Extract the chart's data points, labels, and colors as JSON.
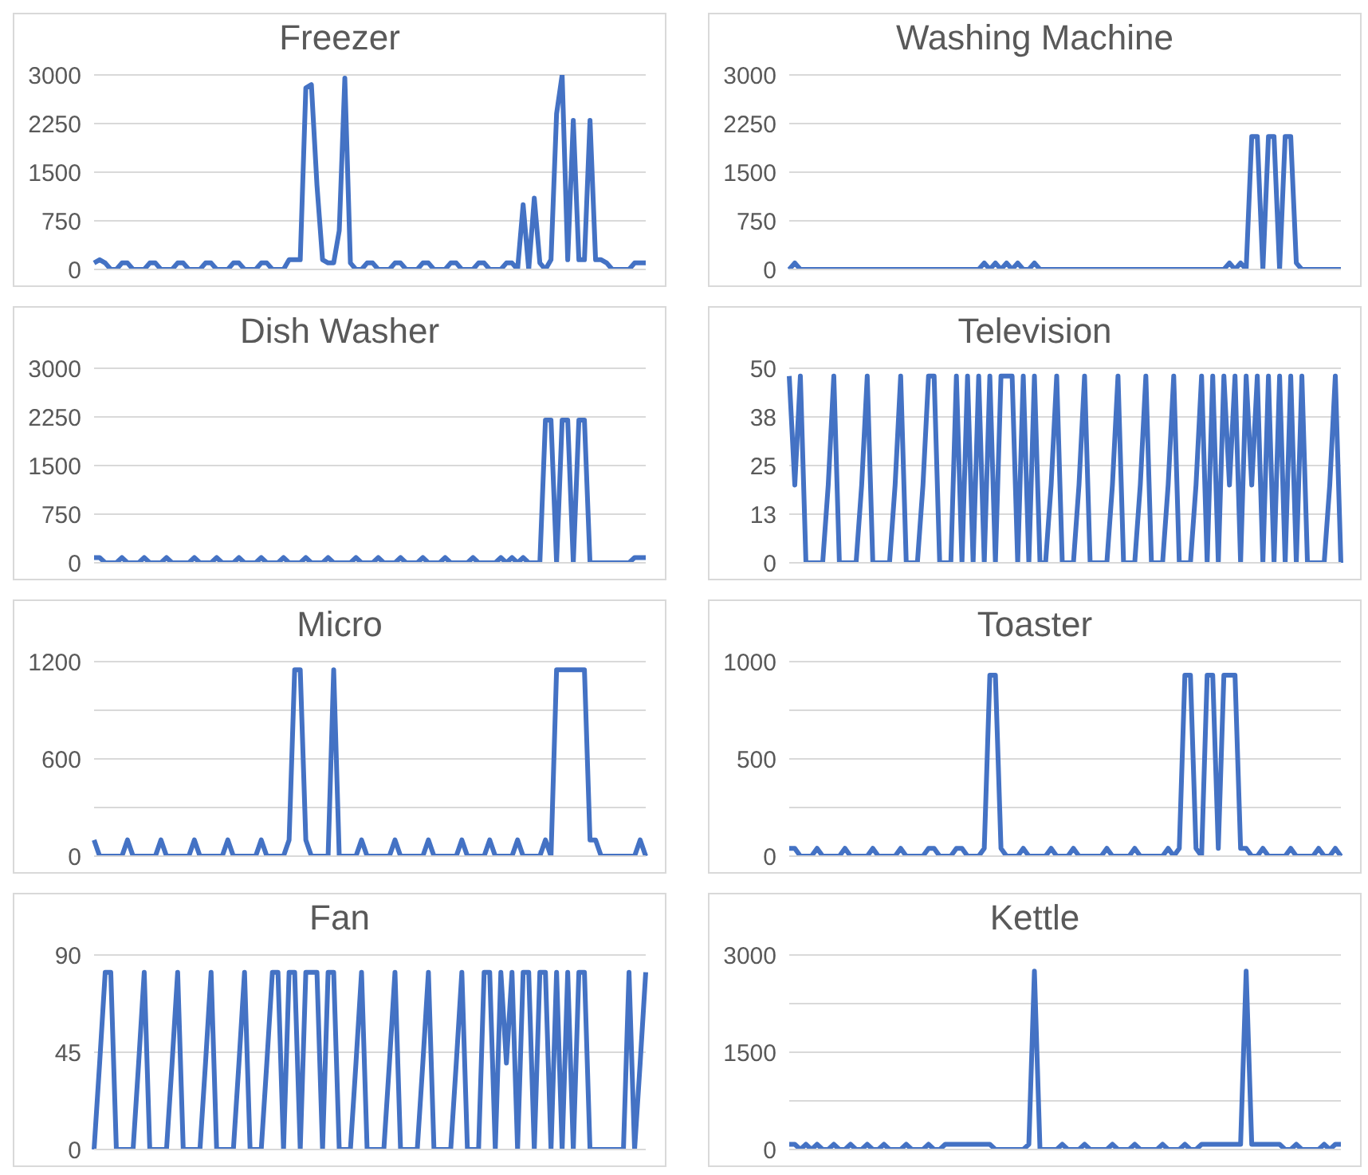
{
  "chart_data": [
    {
      "type": "line",
      "title": "Freezer",
      "tick_labels": "y",
      "grid": "y",
      "color": "#4472c4",
      "ylim": [
        0,
        3000
      ],
      "yticks": [
        0,
        750,
        1500,
        2250,
        3000
      ],
      "categories": [
        null,
        null,
        null,
        null,
        null,
        null,
        null,
        null,
        null,
        null,
        null,
        null,
        null,
        null,
        null,
        null,
        null,
        null,
        null,
        null,
        null,
        null,
        null,
        null,
        null,
        null,
        null,
        null,
        null,
        null,
        null,
        null,
        null,
        null,
        null,
        null,
        null,
        null,
        null,
        null,
        null,
        null,
        null,
        null,
        null,
        null,
        null,
        null,
        null,
        null,
        null,
        null,
        null,
        null,
        null,
        null,
        null,
        null,
        null,
        null,
        null,
        null,
        null,
        null,
        null,
        null,
        null,
        null,
        null,
        null,
        null,
        null,
        null,
        null,
        null,
        null,
        null,
        null,
        null,
        null,
        null,
        null,
        null,
        null,
        null,
        null,
        null,
        null,
        null,
        null,
        null,
        null,
        null,
        null,
        null,
        null,
        null,
        null,
        null,
        null
      ],
      "values": [
        100,
        150,
        100,
        0,
        0,
        100,
        100,
        0,
        0,
        0,
        100,
        100,
        0,
        0,
        0,
        100,
        100,
        0,
        0,
        0,
        100,
        100,
        0,
        0,
        0,
        100,
        100,
        0,
        0,
        0,
        100,
        100,
        0,
        0,
        0,
        150,
        150,
        150,
        2800,
        2850,
        1300,
        150,
        100,
        100,
        600,
        2950,
        100,
        0,
        0,
        100,
        100,
        0,
        0,
        0,
        100,
        100,
        0,
        0,
        0,
        100,
        100,
        0,
        0,
        0,
        100,
        100,
        0,
        0,
        0,
        100,
        100,
        0,
        0,
        0,
        100,
        100,
        0,
        1000,
        0,
        1100,
        100,
        0,
        150,
        2400,
        3000,
        150,
        2300,
        150,
        150,
        2300,
        150,
        150,
        100,
        0,
        0,
        0,
        0,
        100,
        100,
        100
      ]
    },
    {
      "type": "line",
      "title": "Washing Machine",
      "tick_labels": "y",
      "grid": "y",
      "color": "#4472c4",
      "ylim": [
        0,
        3000
      ],
      "yticks": [
        0,
        750,
        1500,
        2250,
        3000
      ],
      "categories": [
        null,
        null,
        null,
        null,
        null,
        null,
        null,
        null,
        null,
        null,
        null,
        null,
        null,
        null,
        null,
        null,
        null,
        null,
        null,
        null,
        null,
        null,
        null,
        null,
        null,
        null,
        null,
        null,
        null,
        null,
        null,
        null,
        null,
        null,
        null,
        null,
        null,
        null,
        null,
        null,
        null,
        null,
        null,
        null,
        null,
        null,
        null,
        null,
        null,
        null,
        null,
        null,
        null,
        null,
        null,
        null,
        null,
        null,
        null,
        null,
        null,
        null,
        null,
        null,
        null,
        null,
        null,
        null,
        null,
        null,
        null,
        null,
        null,
        null,
        null,
        null,
        null,
        null,
        null,
        null,
        null,
        null,
        null,
        null,
        null,
        null,
        null,
        null,
        null,
        null,
        null,
        null,
        null,
        null,
        null,
        null,
        null,
        null,
        null,
        null
      ],
      "values": [
        0,
        100,
        0,
        0,
        0,
        0,
        0,
        0,
        0,
        0,
        0,
        0,
        0,
        0,
        0,
        0,
        0,
        0,
        0,
        0,
        0,
        0,
        0,
        0,
        0,
        0,
        0,
        0,
        0,
        0,
        0,
        0,
        0,
        0,
        0,
        100,
        0,
        100,
        0,
        100,
        0,
        100,
        0,
        0,
        100,
        0,
        0,
        0,
        0,
        0,
        0,
        0,
        0,
        0,
        0,
        0,
        0,
        0,
        0,
        0,
        0,
        0,
        0,
        0,
        0,
        0,
        0,
        0,
        0,
        0,
        0,
        0,
        0,
        0,
        0,
        0,
        0,
        0,
        0,
        100,
        0,
        100,
        0,
        2050,
        2050,
        0,
        2050,
        2050,
        0,
        2050,
        2050,
        100,
        0,
        0,
        0,
        0,
        0,
        0,
        0,
        0
      ]
    },
    {
      "type": "line",
      "title": "Dish Washer",
      "tick_labels": "y",
      "grid": "y",
      "color": "#4472c4",
      "ylim": [
        0,
        3000
      ],
      "yticks": [
        0,
        750,
        1500,
        2250,
        3000
      ],
      "categories": [
        null,
        null,
        null,
        null,
        null,
        null,
        null,
        null,
        null,
        null,
        null,
        null,
        null,
        null,
        null,
        null,
        null,
        null,
        null,
        null,
        null,
        null,
        null,
        null,
        null,
        null,
        null,
        null,
        null,
        null,
        null,
        null,
        null,
        null,
        null,
        null,
        null,
        null,
        null,
        null,
        null,
        null,
        null,
        null,
        null,
        null,
        null,
        null,
        null,
        null,
        null,
        null,
        null,
        null,
        null,
        null,
        null,
        null,
        null,
        null,
        null,
        null,
        null,
        null,
        null,
        null,
        null,
        null,
        null,
        null,
        null,
        null,
        null,
        null,
        null,
        null,
        null,
        null,
        null,
        null,
        null,
        null,
        null,
        null,
        null,
        null,
        null,
        null,
        null,
        null,
        null,
        null,
        null,
        null,
        null,
        null,
        null,
        null,
        null,
        null
      ],
      "values": [
        80,
        80,
        0,
        0,
        0,
        80,
        0,
        0,
        0,
        80,
        0,
        0,
        0,
        80,
        0,
        0,
        0,
        0,
        80,
        0,
        0,
        0,
        80,
        0,
        0,
        0,
        80,
        0,
        0,
        0,
        80,
        0,
        0,
        0,
        80,
        0,
        0,
        0,
        80,
        0,
        0,
        0,
        80,
        0,
        0,
        0,
        0,
        80,
        0,
        0,
        0,
        80,
        0,
        0,
        0,
        80,
        0,
        0,
        0,
        80,
        0,
        0,
        0,
        80,
        0,
        0,
        0,
        0,
        80,
        0,
        0,
        0,
        0,
        80,
        0,
        80,
        0,
        80,
        0,
        0,
        0,
        2200,
        2200,
        0,
        2200,
        2200,
        0,
        2200,
        2200,
        0,
        0,
        0,
        0,
        0,
        0,
        0,
        0,
        80,
        80,
        80
      ]
    },
    {
      "type": "line",
      "title": "Television",
      "tick_labels": "y",
      "grid": "y",
      "color": "#4472c4",
      "ylim": [
        0,
        50
      ],
      "yticks": [
        0,
        {
          "value": 12.5,
          "label": "13"
        },
        25,
        {
          "value": 37.5,
          "label": "38"
        },
        50
      ],
      "categories": [
        null,
        null,
        null,
        null,
        null,
        null,
        null,
        null,
        null,
        null,
        null,
        null,
        null,
        null,
        null,
        null,
        null,
        null,
        null,
        null,
        null,
        null,
        null,
        null,
        null,
        null,
        null,
        null,
        null,
        null,
        null,
        null,
        null,
        null,
        null,
        null,
        null,
        null,
        null,
        null,
        null,
        null,
        null,
        null,
        null,
        null,
        null,
        null,
        null,
        null,
        null,
        null,
        null,
        null,
        null,
        null,
        null,
        null,
        null,
        null,
        null,
        null,
        null,
        null,
        null,
        null,
        null,
        null,
        null,
        null,
        null,
        null,
        null,
        null,
        null,
        null,
        null,
        null,
        null,
        null,
        null,
        null,
        null,
        null,
        null,
        null,
        null,
        null,
        null,
        null,
        null,
        null,
        null,
        null,
        null,
        null,
        null,
        null,
        null,
        null
      ],
      "values": [
        48,
        20,
        48,
        0,
        0,
        0,
        0,
        20,
        48,
        0,
        0,
        0,
        0,
        20,
        48,
        0,
        0,
        0,
        0,
        20,
        48,
        0,
        0,
        0,
        20,
        48,
        48,
        0,
        0,
        0,
        48,
        0,
        48,
        0,
        48,
        0,
        48,
        0,
        48,
        48,
        48,
        0,
        48,
        0,
        48,
        0,
        0,
        20,
        48,
        0,
        0,
        0,
        20,
        48,
        0,
        0,
        0,
        0,
        20,
        48,
        0,
        0,
        0,
        20,
        48,
        0,
        0,
        0,
        20,
        48,
        0,
        0,
        0,
        20,
        48,
        0,
        48,
        0,
        48,
        20,
        48,
        0,
        48,
        20,
        48,
        0,
        48,
        0,
        48,
        0,
        48,
        0,
        48,
        0,
        0,
        0,
        0,
        20,
        48,
        0
      ]
    },
    {
      "type": "line",
      "title": "Micro",
      "tick_labels": "y",
      "grid": "y",
      "color": "#4472c4",
      "ylim": [
        0,
        1200
      ],
      "yticks": [
        0,
        {
          "value": 300,
          "label": null
        },
        600,
        {
          "value": 900,
          "label": null
        },
        1200
      ],
      "categories": [
        null,
        null,
        null,
        null,
        null,
        null,
        null,
        null,
        null,
        null,
        null,
        null,
        null,
        null,
        null,
        null,
        null,
        null,
        null,
        null,
        null,
        null,
        null,
        null,
        null,
        null,
        null,
        null,
        null,
        null,
        null,
        null,
        null,
        null,
        null,
        null,
        null,
        null,
        null,
        null,
        null,
        null,
        null,
        null,
        null,
        null,
        null,
        null,
        null,
        null,
        null,
        null,
        null,
        null,
        null,
        null,
        null,
        null,
        null,
        null,
        null,
        null,
        null,
        null,
        null,
        null,
        null,
        null,
        null,
        null,
        null,
        null,
        null,
        null,
        null,
        null,
        null,
        null,
        null,
        null,
        null,
        null,
        null,
        null,
        null,
        null,
        null,
        null,
        null,
        null,
        null,
        null,
        null,
        null,
        null,
        null,
        null,
        null,
        null,
        null
      ],
      "values": [
        100,
        0,
        0,
        0,
        0,
        0,
        100,
        0,
        0,
        0,
        0,
        0,
        100,
        0,
        0,
        0,
        0,
        0,
        100,
        0,
        0,
        0,
        0,
        0,
        100,
        0,
        0,
        0,
        0,
        0,
        100,
        0,
        0,
        0,
        0,
        100,
        1150,
        1150,
        100,
        0,
        0,
        0,
        0,
        1150,
        0,
        0,
        0,
        0,
        100,
        0,
        0,
        0,
        0,
        0,
        100,
        0,
        0,
        0,
        0,
        0,
        100,
        0,
        0,
        0,
        0,
        0,
        100,
        0,
        0,
        0,
        0,
        100,
        0,
        0,
        0,
        0,
        100,
        0,
        0,
        0,
        0,
        100,
        0,
        1150,
        1150,
        1150,
        1150,
        1150,
        1150,
        100,
        100,
        0,
        0,
        0,
        0,
        0,
        0,
        0,
        100,
        0
      ]
    },
    {
      "type": "line",
      "title": "Toaster",
      "tick_labels": "y",
      "grid": "y",
      "color": "#4472c4",
      "ylim": [
        0,
        1000
      ],
      "yticks": [
        0,
        {
          "value": 250,
          "label": null
        },
        500,
        {
          "value": 750,
          "label": null
        },
        1000
      ],
      "categories": [
        null,
        null,
        null,
        null,
        null,
        null,
        null,
        null,
        null,
        null,
        null,
        null,
        null,
        null,
        null,
        null,
        null,
        null,
        null,
        null,
        null,
        null,
        null,
        null,
        null,
        null,
        null,
        null,
        null,
        null,
        null,
        null,
        null,
        null,
        null,
        null,
        null,
        null,
        null,
        null,
        null,
        null,
        null,
        null,
        null,
        null,
        null,
        null,
        null,
        null,
        null,
        null,
        null,
        null,
        null,
        null,
        null,
        null,
        null,
        null,
        null,
        null,
        null,
        null,
        null,
        null,
        null,
        null,
        null,
        null,
        null,
        null,
        null,
        null,
        null,
        null,
        null,
        null,
        null,
        null,
        null,
        null,
        null,
        null,
        null,
        null,
        null,
        null,
        null,
        null,
        null,
        null,
        null,
        null,
        null,
        null,
        null,
        null,
        null,
        null
      ],
      "values": [
        40,
        40,
        0,
        0,
        0,
        40,
        0,
        0,
        0,
        0,
        40,
        0,
        0,
        0,
        0,
        40,
        0,
        0,
        0,
        0,
        40,
        0,
        0,
        0,
        0,
        40,
        40,
        0,
        0,
        0,
        40,
        40,
        0,
        0,
        0,
        40,
        930,
        930,
        40,
        0,
        0,
        0,
        40,
        0,
        0,
        0,
        0,
        40,
        0,
        0,
        0,
        40,
        0,
        0,
        0,
        0,
        0,
        40,
        0,
        0,
        0,
        0,
        40,
        0,
        0,
        0,
        0,
        0,
        40,
        0,
        40,
        930,
        930,
        40,
        0,
        930,
        930,
        40,
        930,
        930,
        930,
        40,
        40,
        0,
        0,
        40,
        0,
        0,
        0,
        0,
        40,
        0,
        0,
        0,
        0,
        40,
        0,
        0,
        40,
        0
      ]
    },
    {
      "type": "line",
      "title": "Fan",
      "tick_labels": "y",
      "grid": "y",
      "color": "#4472c4",
      "ylim": [
        0,
        90
      ],
      "yticks": [
        0,
        45,
        90
      ],
      "categories": [
        null,
        null,
        null,
        null,
        null,
        null,
        null,
        null,
        null,
        null,
        null,
        null,
        null,
        null,
        null,
        null,
        null,
        null,
        null,
        null,
        null,
        null,
        null,
        null,
        null,
        null,
        null,
        null,
        null,
        null,
        null,
        null,
        null,
        null,
        null,
        null,
        null,
        null,
        null,
        null,
        null,
        null,
        null,
        null,
        null,
        null,
        null,
        null,
        null,
        null,
        null,
        null,
        null,
        null,
        null,
        null,
        null,
        null,
        null,
        null,
        null,
        null,
        null,
        null,
        null,
        null,
        null,
        null,
        null,
        null,
        null,
        null,
        null,
        null,
        null,
        null,
        null,
        null,
        null,
        null,
        null,
        null,
        null,
        null,
        null,
        null,
        null,
        null,
        null,
        null,
        null,
        null,
        null,
        null,
        null,
        null,
        null,
        null,
        null,
        null
      ],
      "values": [
        0,
        40,
        82,
        82,
        0,
        0,
        0,
        0,
        40,
        82,
        0,
        0,
        0,
        0,
        40,
        82,
        0,
        0,
        0,
        0,
        40,
        82,
        0,
        0,
        0,
        0,
        40,
        82,
        0,
        0,
        0,
        40,
        82,
        82,
        0,
        82,
        82,
        0,
        82,
        82,
        82,
        0,
        82,
        82,
        0,
        0,
        0,
        40,
        82,
        0,
        0,
        0,
        0,
        40,
        82,
        0,
        0,
        0,
        0,
        40,
        82,
        0,
        0,
        0,
        0,
        40,
        82,
        0,
        0,
        0,
        82,
        82,
        0,
        82,
        40,
        82,
        0,
        82,
        82,
        0,
        82,
        82,
        0,
        82,
        0,
        82,
        0,
        82,
        82,
        0,
        0,
        0,
        0,
        0,
        0,
        0,
        82,
        0,
        40,
        82
      ]
    },
    {
      "type": "line",
      "title": "Kettle",
      "tick_labels": "y",
      "grid": "y",
      "color": "#4472c4",
      "ylim": [
        0,
        3000
      ],
      "yticks": [
        0,
        {
          "value": 750,
          "label": null
        },
        1500,
        {
          "value": 2250,
          "label": null
        },
        3000
      ],
      "categories": [
        null,
        null,
        null,
        null,
        null,
        null,
        null,
        null,
        null,
        null,
        null,
        null,
        null,
        null,
        null,
        null,
        null,
        null,
        null,
        null,
        null,
        null,
        null,
        null,
        null,
        null,
        null,
        null,
        null,
        null,
        null,
        null,
        null,
        null,
        null,
        null,
        null,
        null,
        null,
        null,
        null,
        null,
        null,
        null,
        null,
        null,
        null,
        null,
        null,
        null,
        null,
        null,
        null,
        null,
        null,
        null,
        null,
        null,
        null,
        null,
        null,
        null,
        null,
        null,
        null,
        null,
        null,
        null,
        null,
        null,
        null,
        null,
        null,
        null,
        null,
        null,
        null,
        null,
        null,
        null,
        null,
        null,
        null,
        null,
        null,
        null,
        null,
        null,
        null,
        null,
        null,
        null,
        null,
        null,
        null,
        null,
        null,
        null,
        null,
        null
      ],
      "values": [
        80,
        80,
        0,
        80,
        0,
        80,
        0,
        0,
        80,
        0,
        0,
        80,
        0,
        0,
        80,
        0,
        0,
        80,
        0,
        0,
        0,
        80,
        0,
        0,
        0,
        80,
        0,
        0,
        80,
        80,
        80,
        80,
        80,
        80,
        80,
        80,
        80,
        0,
        0,
        0,
        0,
        0,
        0,
        80,
        2750,
        0,
        0,
        0,
        0,
        80,
        0,
        0,
        0,
        80,
        0,
        0,
        0,
        0,
        80,
        0,
        0,
        0,
        80,
        0,
        0,
        0,
        0,
        80,
        0,
        0,
        0,
        80,
        0,
        0,
        80,
        80,
        80,
        80,
        80,
        80,
        80,
        80,
        2750,
        80,
        80,
        80,
        80,
        80,
        80,
        0,
        0,
        80,
        0,
        0,
        0,
        0,
        80,
        0,
        80,
        80
      ]
    }
  ]
}
